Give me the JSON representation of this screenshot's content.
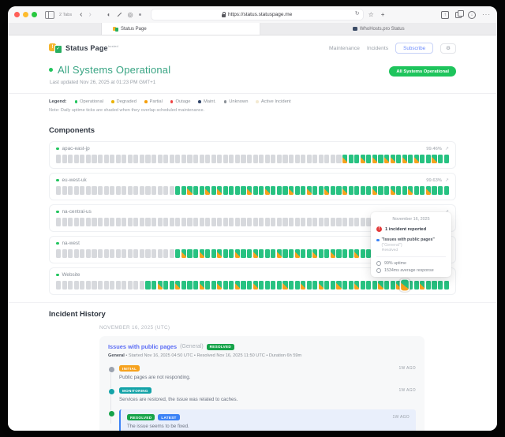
{
  "browser": {
    "tab_count": "2 Tabs",
    "url": "https://status.statuspage.me",
    "tabs": [
      {
        "label": "Status Page"
      },
      {
        "label": "WhoHosts.pro Status"
      }
    ]
  },
  "header": {
    "brand": "Status Page",
    "brand_superscript": "hosted",
    "nav_maintenance": "Maintenance",
    "nav_incidents": "Incidents",
    "subscribe_label": "Subscribe",
    "gear_icon": "⚙",
    "status_pill": "All Systems Operational",
    "pill_color": "#1ec45c"
  },
  "status": {
    "title": "All Systems Operational",
    "title_color": "#3aa584",
    "dot_color": "#22c55e",
    "last_updated": "Last updated Nov 26, 2025 at 01:23 PM GMT+1"
  },
  "legend": {
    "label": "Legend:",
    "items": [
      {
        "label": "Operational",
        "color": "#22c55e"
      },
      {
        "label": "Degraded",
        "color": "#eab308"
      },
      {
        "label": "Partial",
        "color": "#f59e0b"
      },
      {
        "label": "Outage",
        "color": "#ef4444"
      },
      {
        "label": "Maint.",
        "color": "#31456a"
      },
      {
        "label": "Unknown",
        "color": "#8a9097"
      },
      {
        "label": "Active Incident",
        "color": "#f3ead2"
      }
    ],
    "note": "Note: Daily uptime ticks are shaded when they overlap scheduled maintenance."
  },
  "components": {
    "title": "Components",
    "tick_colors": {
      "operational": "#27c281",
      "maintenance": "#f6a21e",
      "unknown": "#d7d9dd"
    },
    "rows": [
      {
        "name": "apac-east-jp",
        "uptime": "99.46%",
        "ticks": "uuuuuuuuuuuuuuuuuuuuuuuuuuuuuuuuuuuuuuuuuuuuuuuumoomomommomomoomoo"
      },
      {
        "name": "eu-west-uk",
        "uptime": "99.63%",
        "ticks": "uuuuuuuuuuuuuuuuuuuuoomoomomoooomoomooomoomoomoomoooomoomoomoomooo"
      },
      {
        "name": "na-central-us",
        "uptime": "",
        "ticks": "uuuuuuuuuuuuuuuuuuuuuuuuuuuuuuuuuuuuuuuuuuuuuuuuuuuuuuuuuuuuuuuooo"
      },
      {
        "name": "na-west",
        "uptime": "",
        "ticks": "uuuuuuuuuuuuuuuuuuuuomoomoomoomoomooomoomoomoomooomoomoooomoomoooo"
      },
      {
        "name": "Website",
        "uptime": "",
        "ticks": "uuuuuuuuuuuuuuuoomoomooomoomoomoomoooomoomoomoomoomooomoommoomoooo",
        "hover_index": 58
      }
    ]
  },
  "tooltip": {
    "date": "November 16, 2025",
    "alert_icon": "!",
    "incident_count": "1 incident reported",
    "incident_title": "\"Issues with public pages\"",
    "incident_scope": "(\"General\")",
    "incident_status": "Resolved",
    "incident_dot_color": "#3b82f6",
    "uptime_stat": "99% uptime",
    "response_stat": "1534ms average response"
  },
  "incident_history": {
    "title": "Incident History",
    "date_label": "NOVEMBER 16, 2025",
    "date_tz": "(UTC)",
    "incident": {
      "title": "Issues with public pages",
      "scope": "(General)",
      "status_badge": "RESOLVED",
      "status_badge_color": "#16a34a",
      "meta_group": "General",
      "meta_rest": " • Started Nov 16, 2025 04:50 UTC • Resolved Nov 16, 2025 11:50 UTC • Duration 6h 59m",
      "updates": [
        {
          "badge": "INITIAL",
          "badge_color": "#f6a21e",
          "dot_color": "#9ca3af",
          "time": "1W AGO",
          "text": "Public pages are not responding."
        },
        {
          "badge": "MONITORING",
          "badge_color": "#14a3a8",
          "dot_color": "#14a3a8",
          "time": "1W AGO",
          "text": "Services are restored, the issue was related to caches."
        },
        {
          "badge": "RESOLVED",
          "badge_color": "#16a34a",
          "badge2": "LATEST",
          "badge2_color": "#3b82f6",
          "dot_color": "#16a34a",
          "time": "1W AGO",
          "text": "The issue seems to be fixed."
        }
      ]
    }
  }
}
